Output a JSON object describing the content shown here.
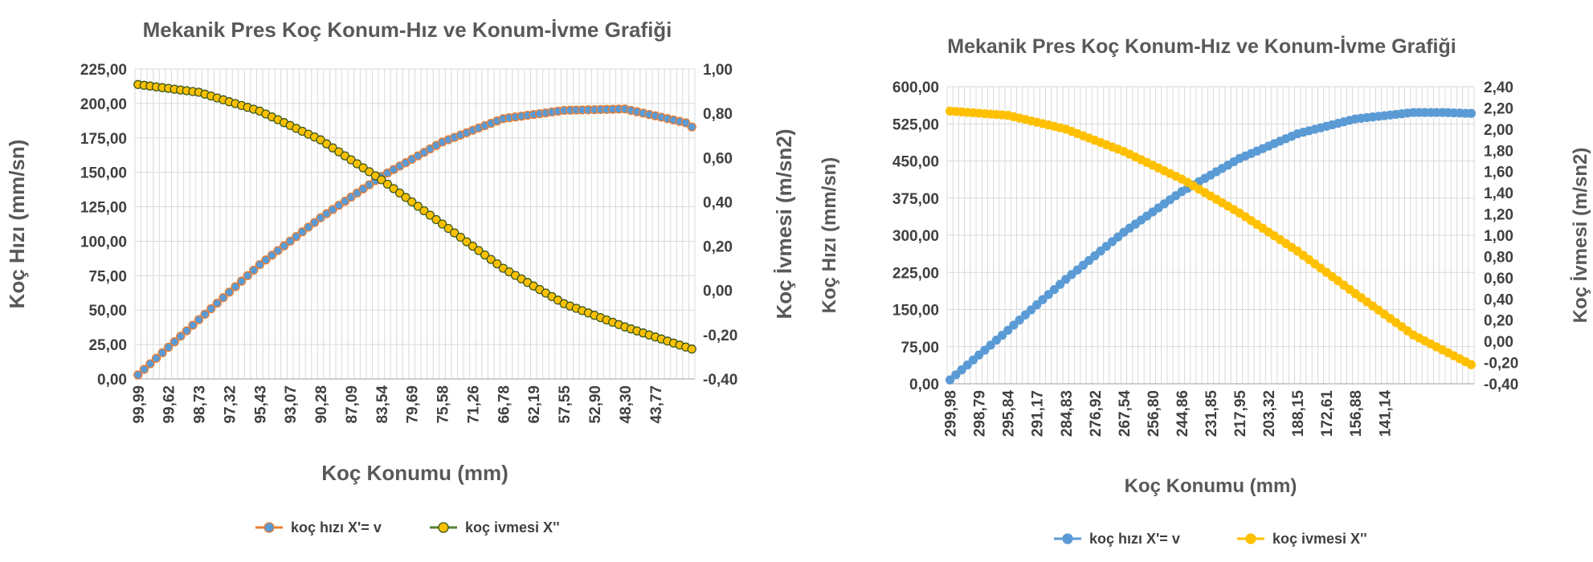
{
  "chart_data": [
    {
      "type": "line",
      "title": "Mekanik Pres Koç Konum-Hız ve Konum-İvme Grafiği",
      "xlabel": "Koç Konumu (mm)",
      "ylabel": "Koç Hızı (mm/sn)",
      "y2label": "Koç İvmesi (m/sn2)",
      "ylim": [
        0,
        225
      ],
      "y2lim": [
        -0.4,
        1.0
      ],
      "yticks": [
        "0,00",
        "25,00",
        "50,00",
        "75,00",
        "100,00",
        "125,00",
        "150,00",
        "175,00",
        "200,00",
        "225,00"
      ],
      "y2ticks": [
        "-0,40",
        "-0,20",
        "0,00",
        "0,20",
        "0,40",
        "0,60",
        "0,80",
        "1,00"
      ],
      "xticks": [
        "99,99",
        "99,62",
        "98,73",
        "97,32",
        "95,43",
        "93,07",
        "90,28",
        "87,09",
        "83,54",
        "79,69",
        "75,58",
        "71,26",
        "66,78",
        "62,19",
        "57,55",
        "52,90",
        "48,30",
        "43,77"
      ],
      "n_points": 92,
      "grid": true,
      "legend_position": "bottom",
      "series": [
        {
          "name": "koç hızı X'= v",
          "axis": "left",
          "line_color": "#ED7D31",
          "marker_fill": "#5B9BD5",
          "marker_stroke": "#ED7D31",
          "key_x": [
            0,
            10,
            20,
            30,
            40,
            50,
            60,
            70,
            80,
            90,
            91
          ],
          "key_y": [
            3,
            43,
            83,
            117,
            147,
            172,
            189,
            195,
            196,
            186,
            183
          ]
        },
        {
          "name": "koç ivmesi X''",
          "axis": "right",
          "line_color": "#548235",
          "marker_fill": "#FFC000",
          "marker_stroke": "#38571A",
          "key_x": [
            0,
            10,
            20,
            30,
            40,
            50,
            60,
            70,
            80,
            91
          ],
          "key_y": [
            0.93,
            0.895,
            0.81,
            0.68,
            0.5,
            0.3,
            0.1,
            -0.06,
            -0.165,
            -0.265
          ]
        }
      ]
    },
    {
      "type": "line",
      "title": "Mekanik Pres Koç Konum-Hız ve Konum-İvme Grafiği",
      "xlabel": "Koç Konumu (mm)",
      "ylabel": "Koç Hızı (mm/sn)",
      "y2label": "Koç İvmesi (m/sn2)",
      "ylim": [
        0,
        600
      ],
      "y2lim": [
        -0.4,
        2.4
      ],
      "yticks": [
        "0,00",
        "75,00",
        "150,00",
        "225,00",
        "300,00",
        "375,00",
        "450,00",
        "525,00",
        "600,00"
      ],
      "y2ticks": [
        "-0,40",
        "-0,20",
        "0,00",
        "0,20",
        "0,40",
        "0,60",
        "0,80",
        "1,00",
        "1,20",
        "1,40",
        "1,60",
        "1,80",
        "2,00",
        "2,20",
        "2,40"
      ],
      "xticks": [
        "299,98",
        "298,79",
        "295,84",
        "291,17",
        "284,83",
        "276,92",
        "267,54",
        "256,80",
        "244,86",
        "231,85",
        "217,95",
        "203,32",
        "188,15",
        "172,61",
        "156,88",
        "141,14"
      ],
      "n_points": 91,
      "grid": true,
      "legend_position": "bottom",
      "series": [
        {
          "name": "koç hızı X'= v",
          "axis": "left",
          "line_color": "#5B9BD5",
          "marker_fill": "#5B9BD5",
          "marker_stroke": "#5B9BD5",
          "key_x": [
            0,
            10,
            20,
            30,
            40,
            50,
            60,
            70,
            80,
            85,
            90
          ],
          "key_y": [
            8,
            108,
            211,
            306,
            388,
            455,
            505,
            535,
            548,
            548,
            546
          ]
        },
        {
          "name": "koç ivmesi X''",
          "axis": "right",
          "line_color": "#FFC000",
          "marker_fill": "#FFC000",
          "marker_stroke": "#FFC000",
          "key_x": [
            0,
            10,
            20,
            30,
            40,
            50,
            60,
            70,
            80,
            90
          ],
          "key_y": [
            2.17,
            2.13,
            2.0,
            1.79,
            1.53,
            1.21,
            0.85,
            0.45,
            0.06,
            -0.22
          ]
        }
      ]
    }
  ]
}
